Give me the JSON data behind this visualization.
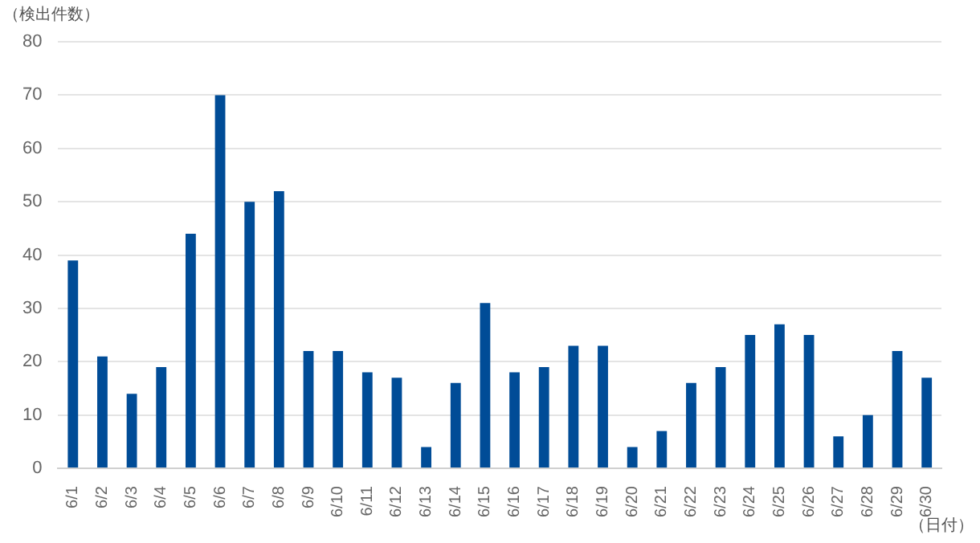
{
  "chart_data": {
    "type": "bar",
    "ylabel": "（検出件数）",
    "xlabel": "（日付）",
    "categories": [
      "6/1",
      "6/2",
      "6/3",
      "6/4",
      "6/5",
      "6/6",
      "6/7",
      "6/8",
      "6/9",
      "6/10",
      "6/11",
      "6/12",
      "6/13",
      "6/14",
      "6/15",
      "6/16",
      "6/17",
      "6/18",
      "6/19",
      "6/20",
      "6/21",
      "6/22",
      "6/23",
      "6/24",
      "6/25",
      "6/26",
      "6/27",
      "6/28",
      "6/29",
      "6/30"
    ],
    "values": [
      39,
      21,
      14,
      19,
      44,
      70,
      50,
      52,
      22,
      22,
      18,
      17,
      4,
      16,
      31,
      18,
      19,
      23,
      23,
      4,
      7,
      16,
      19,
      25,
      27,
      25,
      6,
      10,
      22,
      17
    ],
    "color": "#004c97",
    "ylim": [
      0,
      80
    ],
    "yticks": [
      0,
      10,
      20,
      30,
      40,
      50,
      60,
      70,
      80
    ],
    "grid": "y"
  }
}
